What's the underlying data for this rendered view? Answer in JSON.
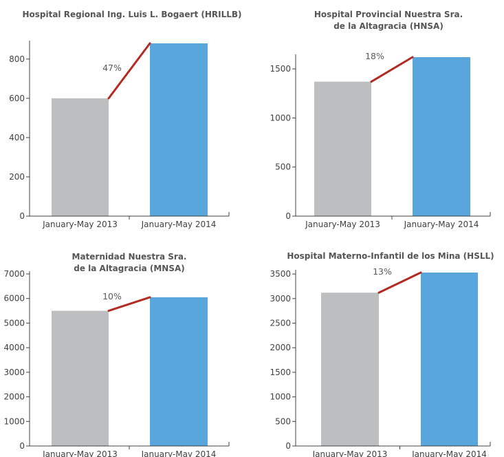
{
  "chart_data": [
    {
      "type": "bar",
      "title_lines": [
        "Hospital Regional Ing. Luis L. Bogaert (HRILLB)"
      ],
      "categories": [
        "January-May 2013",
        "January-May 2014"
      ],
      "values": [
        600,
        880
      ],
      "colors": [
        "#bdbebf",
        "#58a6dc"
      ],
      "ylim": [
        0,
        880
      ],
      "yticks": [
        0,
        200,
        400,
        600,
        800
      ],
      "change_label": "47%",
      "change_line_color": "#b22a20",
      "grid": false
    },
    {
      "type": "bar",
      "title_lines": [
        "Hospital Provincial Nuestra Sra.",
        "de la Altagracia (HNSA)"
      ],
      "categories": [
        "January-May 2013",
        "January-May 2014"
      ],
      "values": [
        1370,
        1620
      ],
      "colors": [
        "#bdbebf",
        "#58a6dc"
      ],
      "ylim": [
        0,
        1620
      ],
      "yticks": [
        0,
        500,
        1000,
        1500
      ],
      "change_label": "18%",
      "change_line_color": "#b22a20",
      "grid": false
    },
    {
      "type": "bar",
      "title_lines": [
        "Maternidad Nuestra Sra.",
        "de la Altagracia (MNSA)"
      ],
      "categories": [
        "January-May 2013",
        "January-May 2014"
      ],
      "values": [
        5500,
        6050
      ],
      "colors": [
        "#bdbebf",
        "#58a6dc"
      ],
      "ylim": [
        0,
        7000
      ],
      "yticks": [
        0,
        1000,
        2000,
        3000,
        4000,
        5000,
        6000,
        7000
      ],
      "change_label": "10%",
      "change_line_color": "#b22a20",
      "grid": false
    },
    {
      "type": "bar",
      "title_lines": [
        "Hospital Materno-Infantil de los Mina (HSLL)"
      ],
      "categories": [
        "January-May 2013",
        "January-May 2014"
      ],
      "values": [
        3120,
        3530
      ],
      "colors": [
        "#bdbebf",
        "#58a6dc"
      ],
      "ylim": [
        0,
        3530
      ],
      "yticks": [
        0,
        500,
        1000,
        1500,
        2000,
        2500,
        3000,
        3500
      ],
      "change_label": "13%",
      "change_line_color": "#b22a20",
      "grid": false
    }
  ]
}
